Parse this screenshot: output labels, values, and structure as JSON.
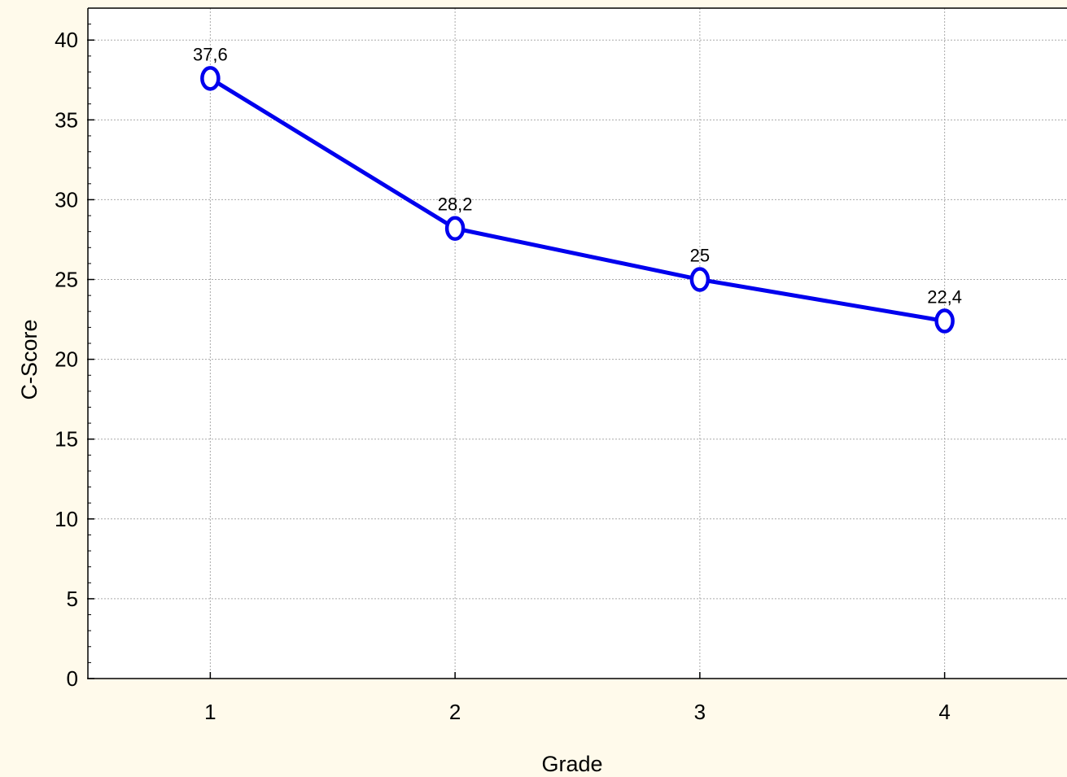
{
  "chart_data": {
    "type": "line",
    "xlabel": "Grade",
    "ylabel": "C-Score",
    "categories": [
      "1",
      "2",
      "3",
      "4"
    ],
    "x": [
      1,
      2,
      3,
      4
    ],
    "series": [
      {
        "values": [
          37.6,
          28.2,
          25,
          22.4
        ],
        "data_labels": [
          "37,6",
          "28,2",
          "25",
          "22,4"
        ],
        "color": "#0000ee"
      }
    ],
    "xlim": [
      0.5,
      4.5
    ],
    "ylim": [
      0,
      42
    ],
    "yticks": [
      0,
      5,
      10,
      15,
      20,
      25,
      30,
      35,
      40
    ],
    "grid": true,
    "legend": "none"
  },
  "colors": {
    "background": "#fffaeb",
    "plot_background": "#ffffff",
    "line": "#0000ee",
    "grid": "#aaaaaa"
  }
}
